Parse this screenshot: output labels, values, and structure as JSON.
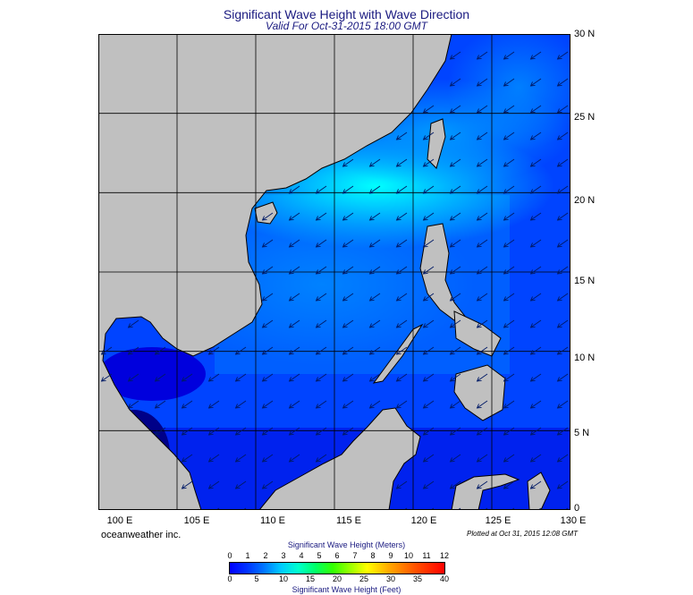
{
  "header": {
    "title": "Significant Wave Height with Wave Direction",
    "subtitle": "Valid For Oct-31-2015 18:00 GMT"
  },
  "map": {
    "lon_labels": [
      "100 E",
      "105 E",
      "110 E",
      "115 E",
      "120 E",
      "125 E",
      "130 E"
    ],
    "lat_labels": [
      "30 N",
      "25 N",
      "20 N",
      "15 N",
      "10 N",
      "5 N",
      "0"
    ],
    "lon_range": [
      100,
      130
    ],
    "lat_range": [
      0,
      30
    ],
    "wave_direction": "from north-east toward south-west",
    "colors": {
      "land": "#c0c0c0",
      "sea_low": "#0000ff",
      "sea_mid": "#0099ff",
      "sea_high": "#00ffff"
    }
  },
  "footer": {
    "company": "oceanweather inc.",
    "plotted": "Plotted at Oct 31, 2015 12:08 GMT"
  },
  "legend": {
    "meters_title": "Significant Wave Height (Meters)",
    "feet_title": "Significant Wave Height (Feet)",
    "meters_ticks": [
      "0",
      "1",
      "2",
      "3",
      "4",
      "5",
      "6",
      "7",
      "8",
      "9",
      "10",
      "11",
      "12"
    ],
    "feet_ticks": [
      "0",
      "5",
      "10",
      "15",
      "20",
      "25",
      "30",
      "35",
      "40"
    ]
  }
}
